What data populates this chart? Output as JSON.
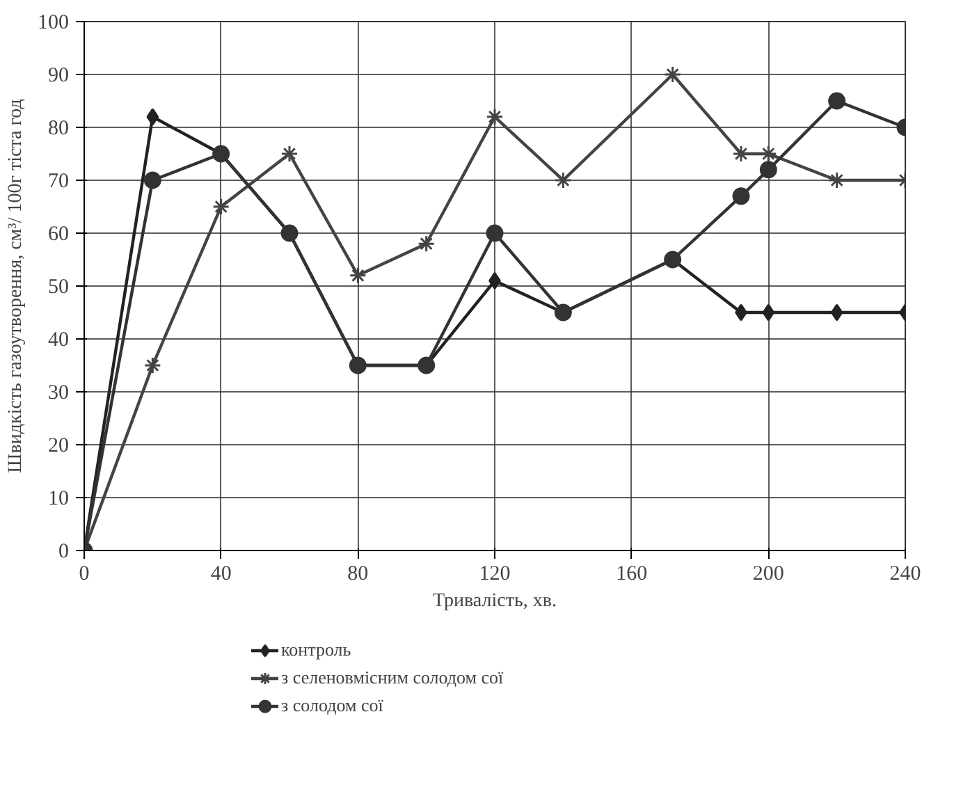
{
  "chart_data": {
    "type": "line",
    "xlabel": "Тривалість, хв.",
    "ylabel": "Швидкість газоутворення, см³/ 100г тіста год",
    "x": [
      0,
      20,
      40,
      60,
      80,
      100,
      120,
      140,
      172,
      192,
      200,
      220,
      240
    ],
    "series": [
      {
        "name": "контроль",
        "color": "#222222",
        "marker": "diamond",
        "values": [
          0,
          82,
          75,
          60,
          35,
          35,
          51,
          45,
          55,
          45,
          45,
          45,
          45
        ]
      },
      {
        "name": "з селеновмісним солодом сої",
        "color": "#444444",
        "marker": "cross",
        "values": [
          0,
          35,
          65,
          75,
          52,
          58,
          82,
          70,
          90,
          75,
          75,
          70,
          70
        ]
      },
      {
        "name": "з солодом сої",
        "color": "#333333",
        "marker": "circle",
        "values": [
          0,
          70,
          75,
          60,
          35,
          35,
          60,
          45,
          55,
          67,
          72,
          85,
          80
        ]
      }
    ],
    "xlim": [
      0,
      240
    ],
    "ylim": [
      0,
      100
    ],
    "xticks": [
      0,
      40,
      80,
      120,
      160,
      200,
      240
    ],
    "yticks": [
      0,
      10,
      20,
      30,
      40,
      50,
      60,
      70,
      80,
      90,
      100
    ],
    "grid": true,
    "legend": "bottom",
    "line_style": "solid"
  }
}
